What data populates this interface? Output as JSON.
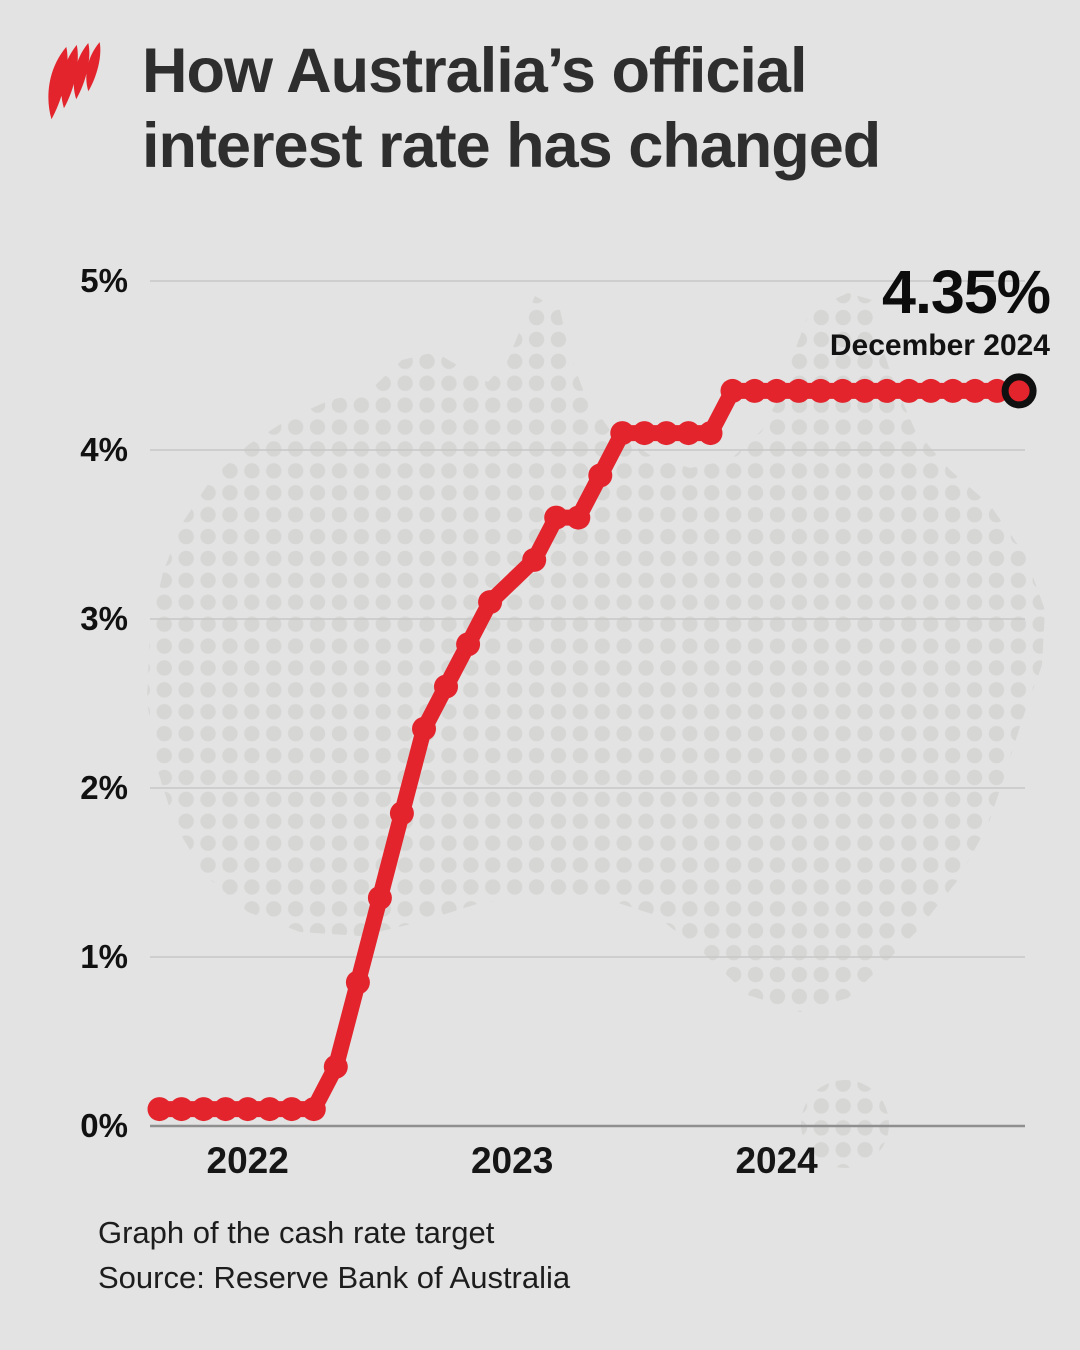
{
  "header": {
    "logo_name": "sbs-mercator-logo",
    "title_line1": "How Australia’s official",
    "title_line2": "interest rate has changed"
  },
  "annotation": {
    "rate": "4.35%",
    "date": "December 2024"
  },
  "footer": {
    "caption": "Graph of the cash rate target",
    "source": "Source: Reserve Bank of Australia"
  },
  "colors": {
    "background": "#e3e3e3",
    "line_red": "#e3242c",
    "map_dot": "#d6d6d5",
    "gridline": "#c7c7c7",
    "axis_line": "#8f8f8f",
    "marker_ring": "#101010",
    "text_dark": "#111111"
  },
  "chart_data": {
    "type": "line",
    "title": "How Australia’s official interest rate has changed",
    "series_name": "Cash rate target",
    "unit": "%",
    "grid": true,
    "legend": "none",
    "y_axis": {
      "tick_labels": [
        "0%",
        "1%",
        "2%",
        "3%",
        "4%",
        "5%"
      ],
      "min": 0,
      "max": 5
    },
    "x_axis": {
      "tick_labels": [
        "2022",
        "2023",
        "2024"
      ],
      "tick_months": [
        "2022-01",
        "2023-01",
        "2024-01"
      ]
    },
    "points": [
      {
        "month": "2021-09",
        "value": 0.1
      },
      {
        "month": "2021-10",
        "value": 0.1
      },
      {
        "month": "2021-11",
        "value": 0.1
      },
      {
        "month": "2021-12",
        "value": 0.1
      },
      {
        "month": "2022-01",
        "value": 0.1
      },
      {
        "month": "2022-02",
        "value": 0.1
      },
      {
        "month": "2022-03",
        "value": 0.1
      },
      {
        "month": "2022-04",
        "value": 0.1
      },
      {
        "month": "2022-05",
        "value": 0.35
      },
      {
        "month": "2022-06",
        "value": 0.85
      },
      {
        "month": "2022-07",
        "value": 1.35
      },
      {
        "month": "2022-08",
        "value": 1.85
      },
      {
        "month": "2022-09",
        "value": 2.35
      },
      {
        "month": "2022-10",
        "value": 2.6
      },
      {
        "month": "2022-11",
        "value": 2.85
      },
      {
        "month": "2022-12",
        "value": 3.1
      },
      {
        "month": "2023-02",
        "value": 3.35
      },
      {
        "month": "2023-03",
        "value": 3.6
      },
      {
        "month": "2023-04",
        "value": 3.6
      },
      {
        "month": "2023-05",
        "value": 3.85
      },
      {
        "month": "2023-06",
        "value": 4.1
      },
      {
        "month": "2023-07",
        "value": 4.1
      },
      {
        "month": "2023-08",
        "value": 4.1
      },
      {
        "month": "2023-09",
        "value": 4.1
      },
      {
        "month": "2023-10",
        "value": 4.1
      },
      {
        "month": "2023-11",
        "value": 4.35
      },
      {
        "month": "2023-12",
        "value": 4.35
      },
      {
        "month": "2024-01",
        "value": 4.35
      },
      {
        "month": "2024-02",
        "value": 4.35
      },
      {
        "month": "2024-03",
        "value": 4.35
      },
      {
        "month": "2024-04",
        "value": 4.35
      },
      {
        "month": "2024-05",
        "value": 4.35
      },
      {
        "month": "2024-06",
        "value": 4.35
      },
      {
        "month": "2024-07",
        "value": 4.35
      },
      {
        "month": "2024-08",
        "value": 4.35
      },
      {
        "month": "2024-09",
        "value": 4.35
      },
      {
        "month": "2024-10",
        "value": 4.35
      },
      {
        "month": "2024-11",
        "value": 4.35
      },
      {
        "month": "2024-12",
        "value": 4.35
      }
    ],
    "end_marker": {
      "month": "2024-12",
      "value": 4.35,
      "label": "4.35%",
      "sublabel": "December 2024",
      "style": "black-ring"
    }
  }
}
